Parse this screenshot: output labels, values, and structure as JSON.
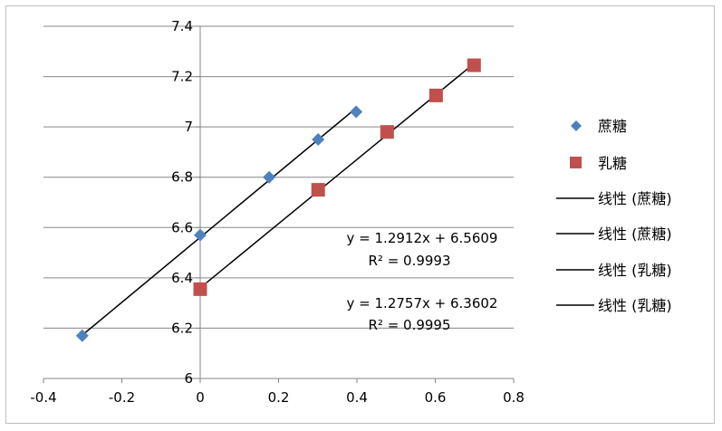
{
  "chart_data": {
    "type": "scatter",
    "title": "",
    "xlabel": "",
    "ylabel": "",
    "xlim": [
      -0.4,
      0.8
    ],
    "ylim": [
      6,
      7.4
    ],
    "xticks": [
      -0.4,
      -0.2,
      0,
      0.2,
      0.4,
      0.6,
      0.8
    ],
    "yticks": [
      6,
      6.2,
      6.4,
      6.6,
      6.8,
      7,
      7.2,
      7.4
    ],
    "xtick_labels": [
      "-0.4",
      "-0.2",
      "0",
      "0.2",
      "0.4",
      "0.6",
      "0.8"
    ],
    "ytick_labels": [
      "6",
      "6.2",
      "6.4",
      "6.6",
      "6.8",
      "7",
      "7.2",
      "7.4"
    ],
    "grid": "horizontal",
    "legend_position": "right",
    "series": [
      {
        "name": "蔗糖",
        "marker": "diamond",
        "color": "#4f81bd",
        "points": [
          [
            -0.301,
            6.17
          ],
          [
            0,
            6.57
          ],
          [
            0.176,
            6.8
          ],
          [
            0.301,
            6.95
          ],
          [
            0.398,
            7.06
          ]
        ]
      },
      {
        "name": "乳糖",
        "marker": "square",
        "color": "#c0504d",
        "points": [
          [
            0,
            6.355
          ],
          [
            0.301,
            6.75
          ],
          [
            0.477,
            6.98
          ],
          [
            0.602,
            7.125
          ],
          [
            0.699,
            7.245
          ]
        ]
      }
    ],
    "trendlines": [
      {
        "legend": "线性 (蔗糖)",
        "slope": 1.2912,
        "intercept": 6.5609,
        "x_range": [
          -0.301,
          0.398
        ],
        "equation": "y = 1.2912x + 6.5609",
        "r2": "R² = 0.9993"
      },
      {
        "legend": "线性 (蔗糖)",
        "slope": 1.2912,
        "intercept": 6.5609,
        "x_range": [
          -0.301,
          0.398
        ],
        "equation": "",
        "r2": ""
      },
      {
        "legend": "线性 (乳糖)",
        "slope": 1.2757,
        "intercept": 6.3602,
        "x_range": [
          0,
          0.699
        ],
        "equation": "y = 1.2757x + 6.3602",
        "r2": "R² = 0.9995"
      },
      {
        "legend": "线性 (乳糖)",
        "slope": 1.2757,
        "intercept": 6.3602,
        "x_range": [
          0,
          0.699
        ],
        "equation": "",
        "r2": ""
      }
    ]
  }
}
